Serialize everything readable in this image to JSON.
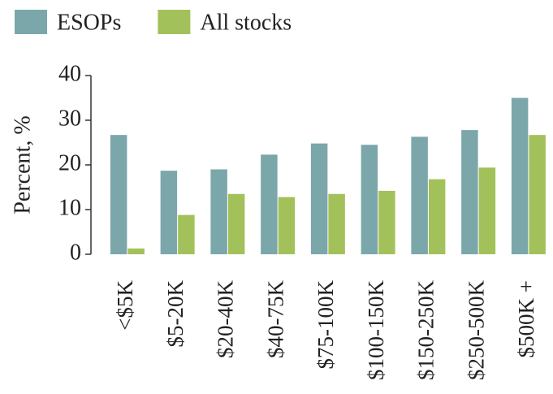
{
  "chart_data": {
    "type": "bar",
    "y_label": "Percent, %",
    "categories": [
      "<$5K",
      "$5-20K",
      "$20-40K",
      "$40-75K",
      "$75-100K",
      "$100-150K",
      "$150-250K",
      "$250-500K",
      "$500K +"
    ],
    "series": [
      {
        "name": "ESOPs",
        "color": "#7ba7ab",
        "values": [
          26.7,
          18.7,
          19,
          22.3,
          24.8,
          24.5,
          26.3,
          27.8,
          35
        ]
      },
      {
        "name": "All stocks",
        "color": "#a3c15a",
        "values": [
          1.3,
          8.8,
          13.5,
          12.8,
          13.5,
          14.2,
          16.8,
          19.4,
          26.7
        ]
      }
    ],
    "ylim": [
      0,
      40
    ],
    "yticks": [
      0,
      10,
      20,
      30,
      40
    ],
    "legend": "top-left"
  }
}
